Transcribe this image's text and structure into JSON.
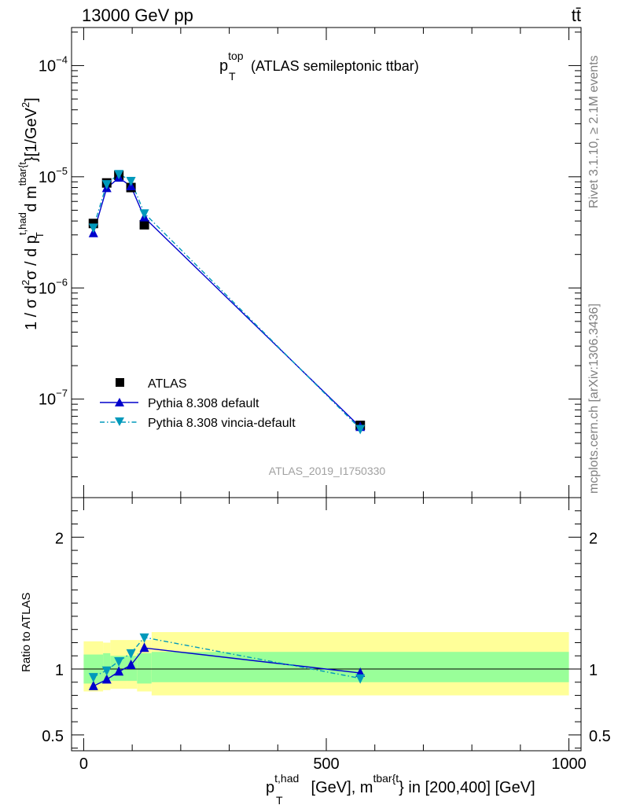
{
  "header": {
    "energy_label": "13000 GeV pp",
    "process_label": "tt̄"
  },
  "side_labels": {
    "rivet": "Rivet 3.1.10, ≥ 2.1M events",
    "mcplots": "mcplots.cern.ch [arXiv:1306.3436]"
  },
  "colors": {
    "atlas": "#000000",
    "pythia_default": "#0000cc",
    "vincia": "#0099bb",
    "band_inner": "#99ff99",
    "band_outer": "#ffff99"
  },
  "chart_data": [
    {
      "type": "line",
      "title_main": "p",
      "title_sup": "top",
      "title_sub": "T",
      "title_rest": "(ATLAS semileptonic ttbar)",
      "analysis_label": "ATLAS_2019_I1750330",
      "yscale": "log",
      "ylim": [
        1.3e-08,
        0.00022
      ],
      "xlim": [
        -25,
        1025
      ],
      "yticks": [
        1e-07,
        1e-06,
        1e-05,
        0.0001
      ],
      "ytick_labels": [
        {
          "mant": "10",
          "exp": "−7"
        },
        {
          "mant": "10",
          "exp": "−6"
        },
        {
          "mant": "10",
          "exp": "−5"
        },
        {
          "mant": "10",
          "exp": "−4"
        }
      ],
      "ylabel": {
        "p1": "1 / σ d",
        "p1sup": "2",
        "p2": "σ / d p",
        "p2sup": "t,had",
        "p2sub": "T",
        "p3": " d m",
        "p3sup": "tbar{t",
        "p4": "}[1/GeV",
        "p4sup": "2",
        "p5": "]"
      },
      "legend_position": "bottom-left",
      "x": [
        20,
        47.5,
        72.5,
        97.5,
        125,
        570
      ],
      "series": [
        {
          "name": "ATLAS",
          "marker": "square",
          "values": [
            3.8e-06,
            8.8e-06,
            1.03e-05,
            8e-06,
            3.7e-06,
            5.8e-08
          ]
        },
        {
          "name": "Pythia 8.308 default",
          "marker": "triangle-up",
          "linestyle": "solid",
          "values": [
            3.1e-06,
            7.9e-06,
            9.8e-06,
            8.2e-06,
            4.3e-06,
            5.6e-08
          ]
        },
        {
          "name": "Pythia 8.308 vincia-default",
          "marker": "triangle-down",
          "linestyle": "dashdot",
          "values": [
            3.5e-06,
            8.6e-06,
            1.06e-05,
            9.2e-06,
            4.7e-06,
            5.4e-08
          ]
        }
      ]
    },
    {
      "type": "line",
      "ylabel": "Ratio to ATLAS",
      "ylim": [
        0.38,
        2.3
      ],
      "xlim": [
        -25,
        1025
      ],
      "yticks": [
        0.5,
        1,
        2
      ],
      "ytick_labels": [
        "0.5",
        "1",
        "2"
      ],
      "xticks": [
        0,
        500,
        1000
      ],
      "xtick_labels": [
        "0",
        "500",
        "1000"
      ],
      "xlabel": {
        "p1": "p",
        "p1sup": "t,had",
        "p1sub": "T",
        "p2": " [GeV], m",
        "p2sup": "tbar{t",
        "p3": "} in [200,400] [GeV]"
      },
      "bins": [
        [
          0,
          40
        ],
        [
          40,
          55
        ],
        [
          55,
          90
        ],
        [
          90,
          110
        ],
        [
          110,
          140
        ],
        [
          140,
          1000
        ]
      ],
      "band_inner": [
        [
          0.89,
          1.11
        ],
        [
          0.9,
          1.12
        ],
        [
          0.91,
          1.1
        ],
        [
          0.91,
          1.1
        ],
        [
          0.89,
          1.12
        ],
        [
          0.9,
          1.13
        ]
      ],
      "band_outer": [
        [
          0.83,
          1.21
        ],
        [
          0.84,
          1.2
        ],
        [
          0.85,
          1.22
        ],
        [
          0.85,
          1.22
        ],
        [
          0.83,
          1.22
        ],
        [
          0.8,
          1.28
        ]
      ],
      "x": [
        20,
        47.5,
        72.5,
        97.5,
        125,
        570
      ],
      "series": [
        {
          "name": "Pythia 8.308 default",
          "marker": "triangle-up",
          "linestyle": "solid",
          "values": [
            0.87,
            0.92,
            0.98,
            1.03,
            1.16,
            0.97
          ]
        },
        {
          "name": "Pythia 8.308 vincia-default",
          "marker": "triangle-down",
          "linestyle": "dashdot",
          "values": [
            0.94,
            0.99,
            1.06,
            1.12,
            1.24,
            0.93
          ]
        }
      ]
    }
  ]
}
